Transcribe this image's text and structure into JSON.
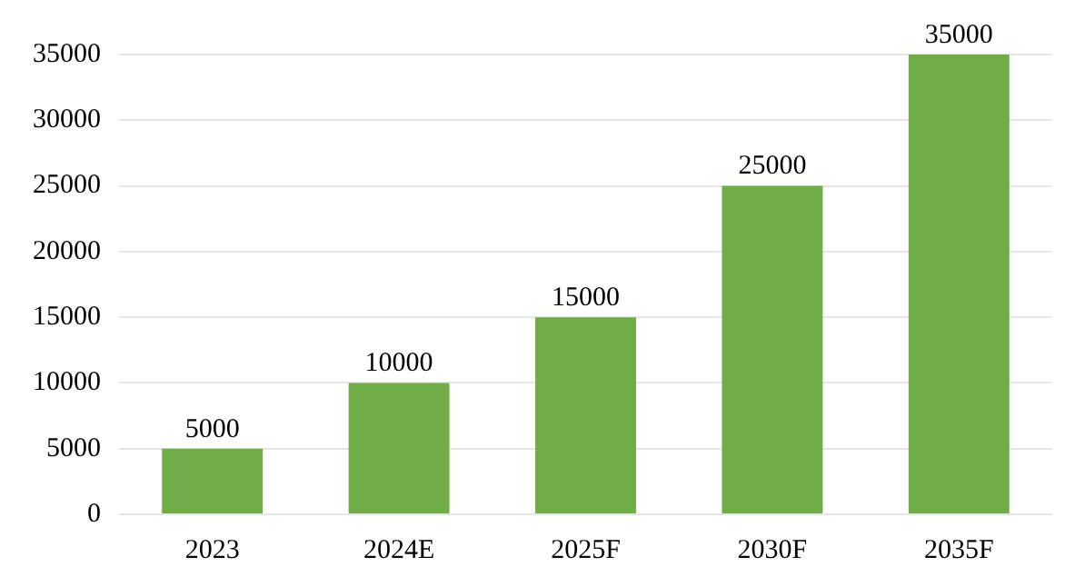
{
  "chart_data": {
    "type": "bar",
    "categories": [
      "2023",
      "2024E",
      "2025F",
      "2030F",
      "2035F"
    ],
    "values": [
      5000,
      10000,
      15000,
      25000,
      35000
    ],
    "color": "#70ad47",
    "ylim": [
      0,
      35000
    ],
    "yticks": [
      0,
      5000,
      10000,
      15000,
      20000,
      25000,
      30000,
      35000
    ],
    "grid": "y",
    "data_labels": true,
    "legend": false
  }
}
